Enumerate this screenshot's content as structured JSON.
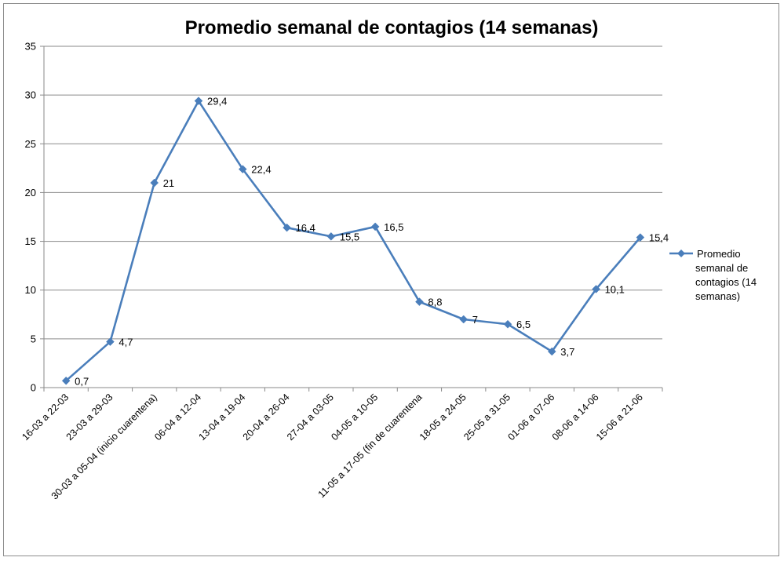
{
  "chart_data": {
    "type": "line",
    "title": "Promedio semanal de contagios (14 semanas)",
    "xlabel": "",
    "ylabel": "",
    "ylim": [
      0,
      35
    ],
    "yticks": [
      0,
      5,
      10,
      15,
      20,
      25,
      30,
      35
    ],
    "grid": true,
    "legend_position": "right",
    "categories": [
      "16-03 a 22-03",
      "23-03 a 29-03",
      "30-03 a 05-04 (inicio cuarentena)",
      "06-04 a 12-04",
      "13-04 a 19-04",
      "20-04 a 26-04",
      "27-04 a 03-05",
      "04-05 a 10-05",
      "11-05 a 17-05 (fin de cuarentena",
      "18-05 a 24-05",
      "25-05 a 31-05",
      "01-06 a 07-06",
      "08-06 a 14-06",
      "15-06 a 21-06"
    ],
    "series": [
      {
        "name": "Promedio semanal de contagios (14 semanas)",
        "color": "#4a7ebb",
        "values": [
          0.7,
          4.7,
          21,
          29.4,
          22.4,
          16.4,
          15.5,
          16.5,
          8.8,
          7,
          6.5,
          3.7,
          10.1,
          15.4
        ],
        "labels": [
          "0,7",
          "4,7",
          "21",
          "29,4",
          "22,4",
          "16,4",
          "15,5",
          "16,5",
          "8,8",
          "7",
          "6,5",
          "3,7",
          "10,1",
          "15,4"
        ]
      }
    ],
    "legend_lines": [
      "Promedio",
      "semanal de",
      "contagios (14",
      "semanas)"
    ]
  }
}
